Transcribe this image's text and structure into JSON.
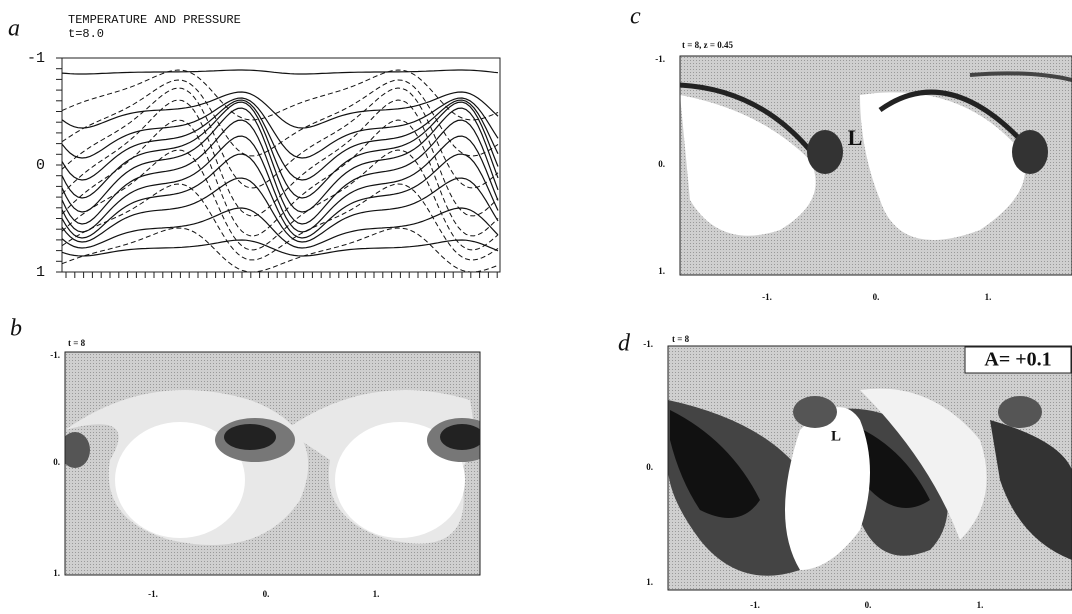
{
  "panels": [
    {
      "letter": "a",
      "title": "TEMPERATURE AND PRESSURE",
      "subtitle": "t=8.0",
      "yticks": [
        "-1",
        "0",
        "1"
      ]
    },
    {
      "letter": "b",
      "subtitle": "t = 8",
      "yticks": [
        "-1.",
        "0.",
        "1."
      ],
      "xticks": [
        "-1.",
        "0.",
        "1."
      ]
    },
    {
      "letter": "c",
      "subtitle": "t = 8,  z = 0.45",
      "annotation": "L",
      "yticks": [
        "-1.",
        "0.",
        "1."
      ],
      "xticks": [
        "-1.",
        "0.",
        "1."
      ]
    },
    {
      "letter": "d",
      "subtitle": "t = 8",
      "annotation": "L",
      "label": "A=  +0.1",
      "yticks": [
        "-1.",
        "0.",
        "1."
      ],
      "xticks": [
        "-1.",
        "0.",
        "1."
      ]
    }
  ]
}
